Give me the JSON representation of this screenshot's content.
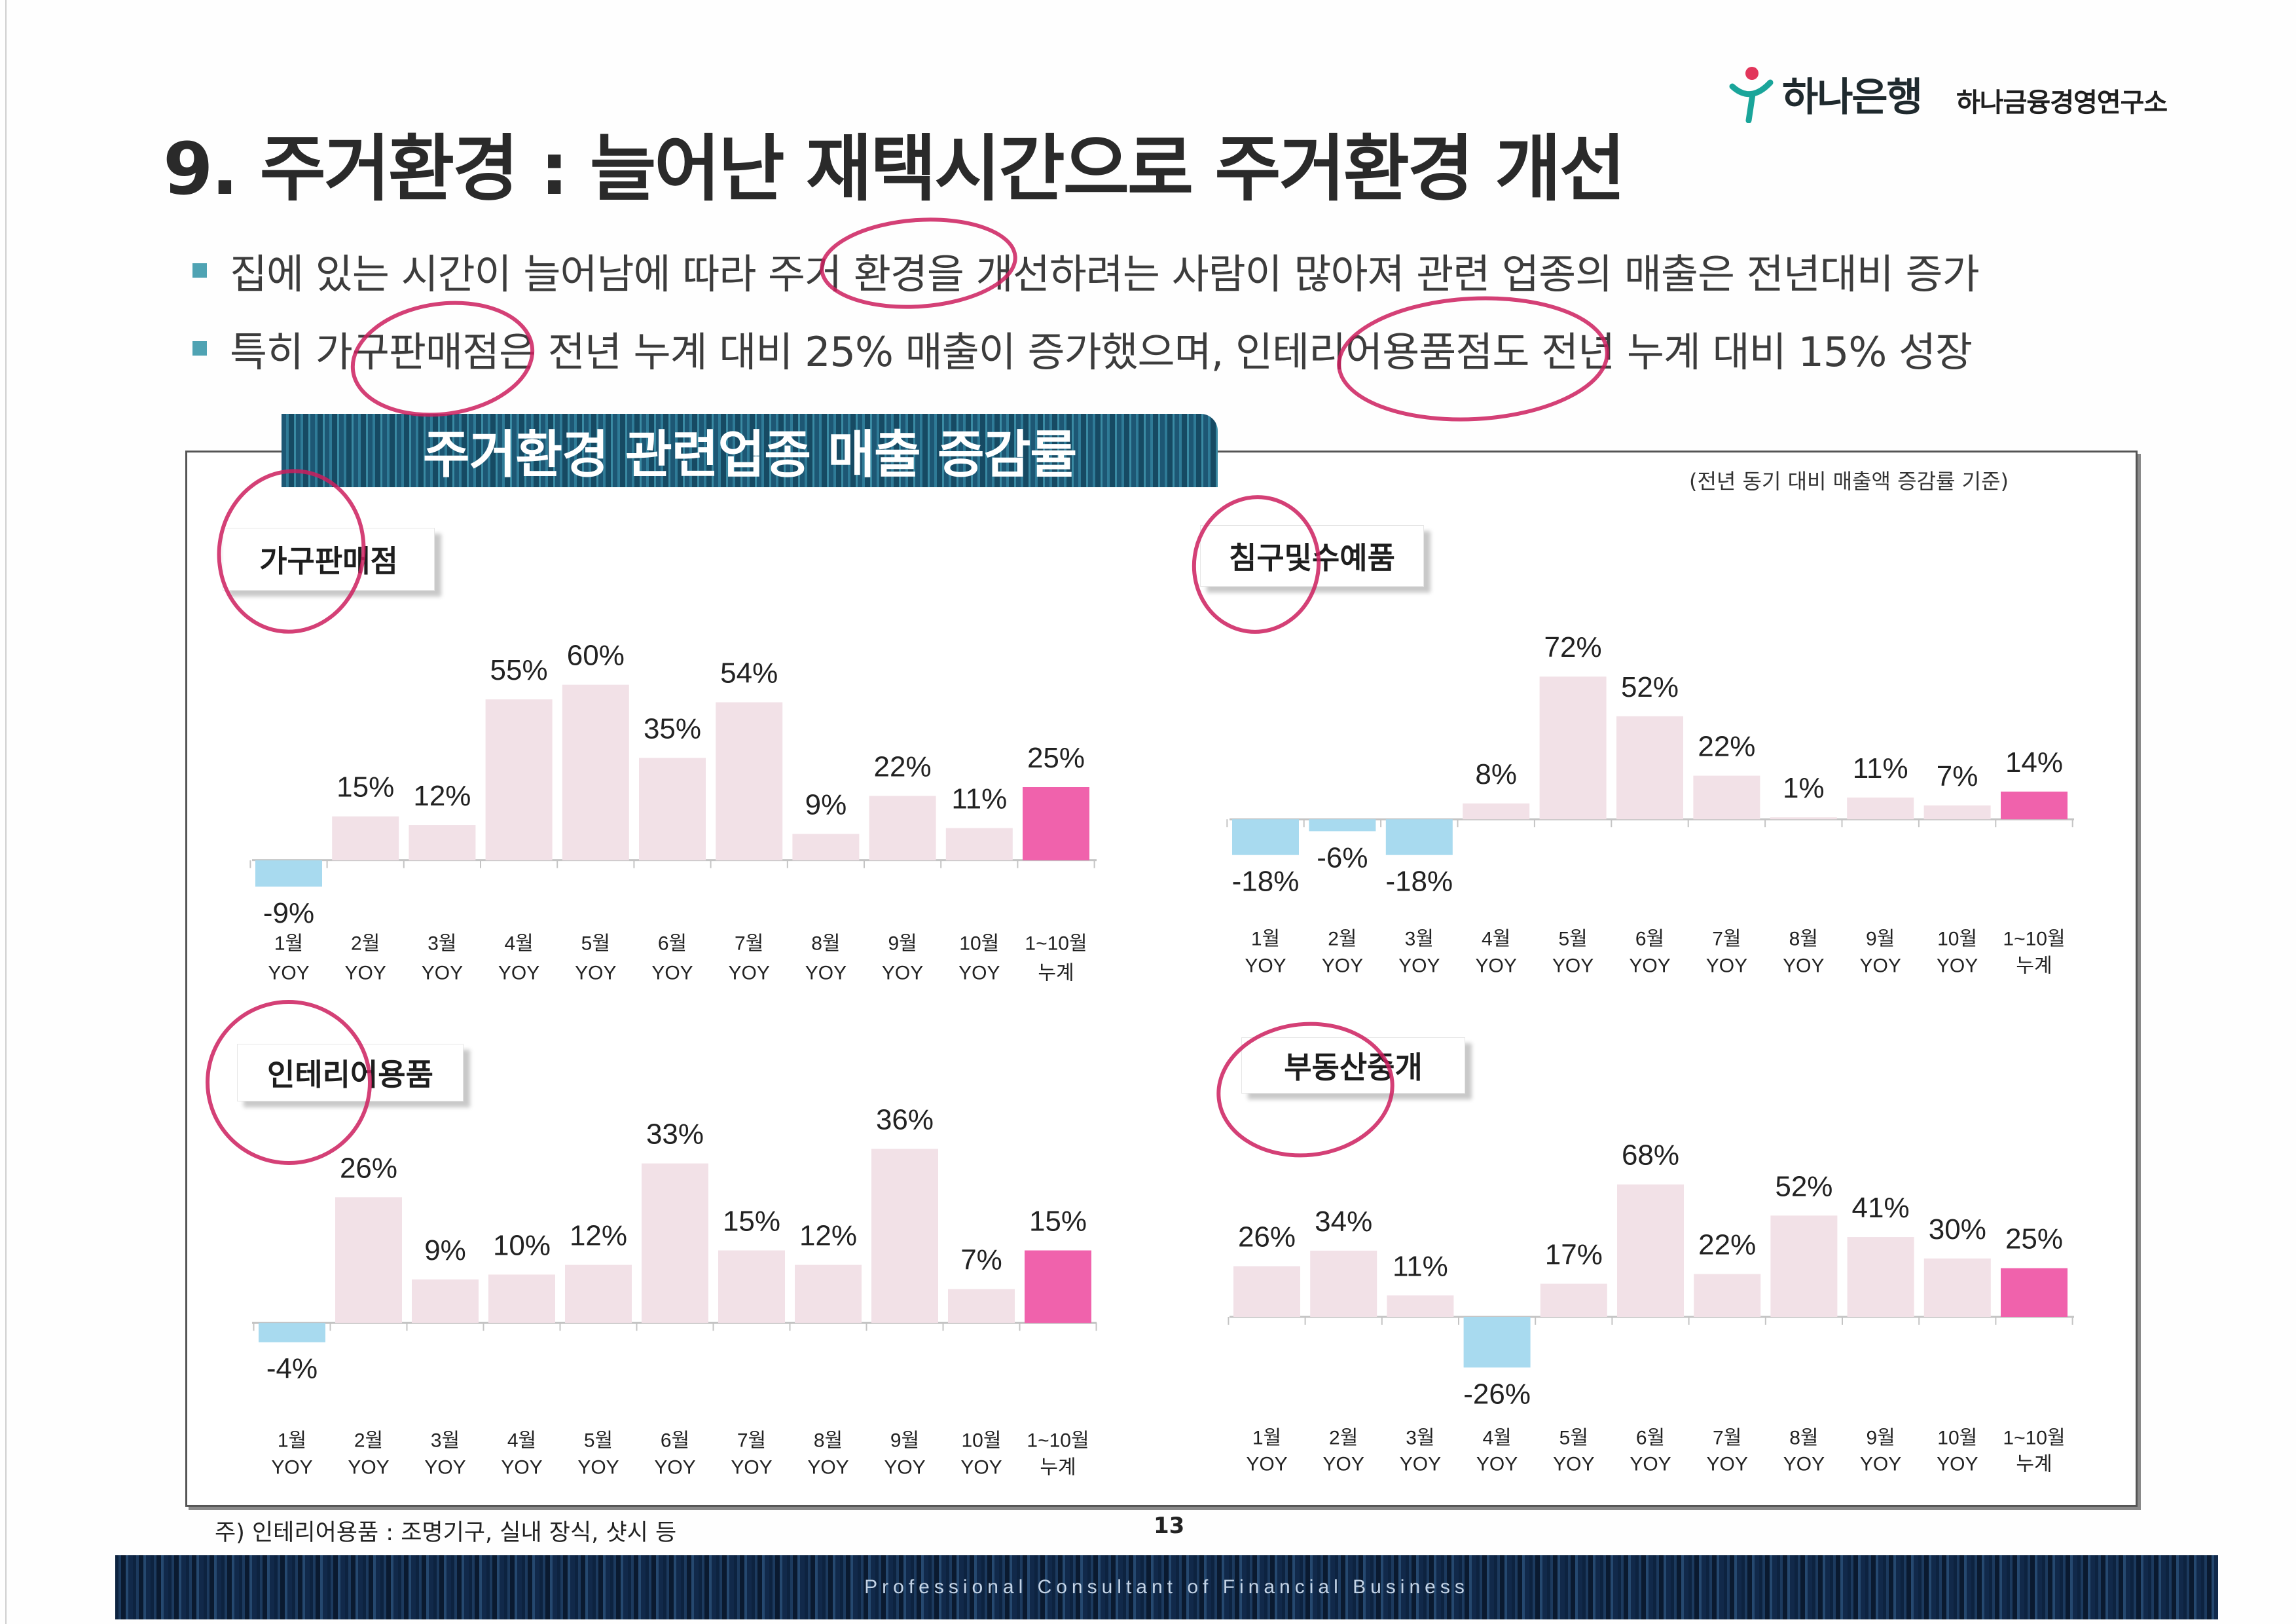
{
  "logo": {
    "bank_name": "하나은행",
    "institute_name": "하나금융경영연구소"
  },
  "title": "9. 주거환경 : 늘어난 재택시간으로 주거환경 개선",
  "bullets": [
    "집에 있는 시간이 늘어남에 따라 주거 환경을 개선하려는 사람이 많아져 관련 업종의 매출은 전년대비 증가",
    "특히 가구판매점은 전년 누계 대비 25% 매출이 증가했으며, 인테리어용품점도 전년 누계 대비 15% 성장"
  ],
  "section_banner": "주거환경 관련업종 매출 증감률",
  "basis_note": "(전년 동기 대비 매출액 증감률 기준)",
  "colors": {
    "positive_bar": "#f2e1e7",
    "negative_bar": "#a8daef",
    "highlight_bar": "#f062ac",
    "axis": "#c4c4c4",
    "annotation": "#cc1f5e"
  },
  "chart_data": [
    {
      "type": "bar",
      "title": "가구판매점",
      "categories": [
        "1월",
        "2월",
        "3월",
        "4월",
        "5월",
        "6월",
        "7월",
        "8월",
        "9월",
        "10월",
        "1~10월"
      ],
      "category_sublabels": [
        "YOY",
        "YOY",
        "YOY",
        "YOY",
        "YOY",
        "YOY",
        "YOY",
        "YOY",
        "YOY",
        "YOY",
        "누계"
      ],
      "values": [
        -9,
        15,
        12,
        55,
        60,
        35,
        54,
        9,
        22,
        11,
        25
      ],
      "value_labels": [
        "-9%",
        "15%",
        "12%",
        "55%",
        "60%",
        "35%",
        "54%",
        "9%",
        "22%",
        "11%",
        "25%"
      ],
      "ylim": [
        -20,
        70
      ],
      "highlight_index": 10
    },
    {
      "type": "bar",
      "title": "침구및수예품",
      "categories": [
        "1월",
        "2월",
        "3월",
        "4월",
        "5월",
        "6월",
        "7월",
        "8월",
        "9월",
        "10월",
        "1~10월"
      ],
      "category_sublabels": [
        "YOY",
        "YOY",
        "YOY",
        "YOY",
        "YOY",
        "YOY",
        "YOY",
        "YOY",
        "YOY",
        "YOY",
        "누계"
      ],
      "values": [
        -18,
        -6,
        -18,
        8,
        72,
        52,
        22,
        1,
        11,
        7,
        14
      ],
      "value_labels": [
        "-18%",
        "-6%",
        "-18%",
        "8%",
        "72%",
        "52%",
        "22%",
        "1%",
        "11%",
        "7%",
        "14%"
      ],
      "ylim": [
        -30,
        80
      ],
      "highlight_index": 10
    },
    {
      "type": "bar",
      "title": "인테리어용품",
      "categories": [
        "1월",
        "2월",
        "3월",
        "4월",
        "5월",
        "6월",
        "7월",
        "8월",
        "9월",
        "10월",
        "1~10월"
      ],
      "category_sublabels": [
        "YOY",
        "YOY",
        "YOY",
        "YOY",
        "YOY",
        "YOY",
        "YOY",
        "YOY",
        "YOY",
        "YOY",
        "누계"
      ],
      "values": [
        -4,
        26,
        9,
        10,
        12,
        33,
        15,
        12,
        36,
        7,
        15
      ],
      "value_labels": [
        "-4%",
        "26%",
        "9%",
        "10%",
        "12%",
        "33%",
        "15%",
        "12%",
        "36%",
        "7%",
        "15%"
      ],
      "ylim": [
        -10,
        40
      ],
      "highlight_index": 10
    },
    {
      "type": "bar",
      "title": "부동산중개",
      "categories": [
        "1월",
        "2월",
        "3월",
        "4월",
        "5월",
        "6월",
        "7월",
        "8월",
        "9월",
        "10월",
        "1~10월"
      ],
      "category_sublabels": [
        "YOY",
        "YOY",
        "YOY",
        "YOY",
        "YOY",
        "YOY",
        "YOY",
        "YOY",
        "YOY",
        "YOY",
        "누계"
      ],
      "values": [
        26,
        34,
        11,
        -26,
        17,
        68,
        22,
        52,
        41,
        30,
        25
      ],
      "value_labels": [
        "26%",
        "34%",
        "11%",
        "-26%",
        "17%",
        "68%",
        "22%",
        "52%",
        "41%",
        "30%",
        "25%"
      ],
      "ylim": [
        -40,
        80
      ],
      "highlight_index": 10
    }
  ],
  "footnote": "주) 인테리어용품 : 조명기구, 실내 장식, 샷시 등",
  "page_number": "13",
  "footer_tagline": "Professional Consultant of Financial Business"
}
